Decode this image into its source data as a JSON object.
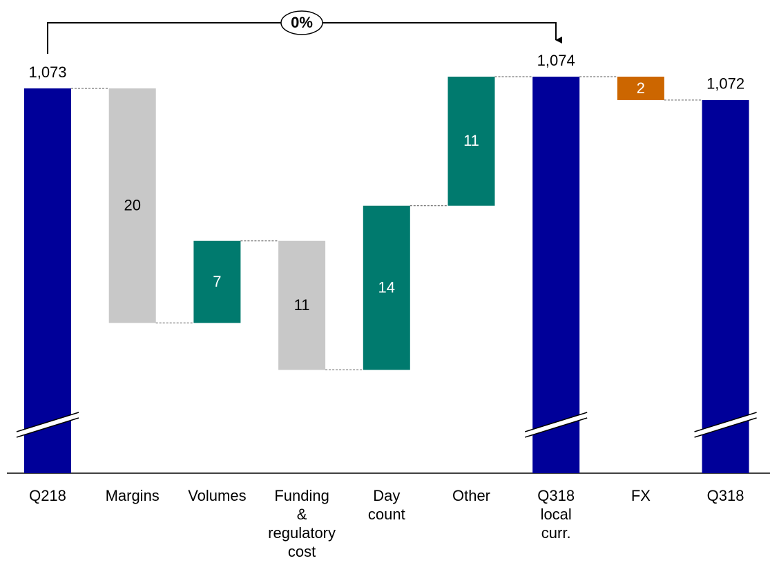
{
  "chart_data": {
    "type": "waterfall",
    "annotation": "0%",
    "categories": [
      "Q218",
      "Margins",
      "Volumes",
      "Funding\n&\nregulatory\ncost",
      "Day\ncount",
      "Other",
      "Q318\nlocal\ncurr.",
      "FX",
      "Q318"
    ],
    "measure": [
      "absolute",
      "relative",
      "relative",
      "relative",
      "relative",
      "relative",
      "absolute",
      "relative",
      "absolute"
    ],
    "values": [
      1073,
      -20,
      7,
      -11,
      14,
      11,
      1074,
      -2,
      1072
    ],
    "value_labels": [
      "1,073",
      "20",
      "7",
      "11",
      "14",
      "11",
      "1,074",
      "2",
      "1,072"
    ],
    "colors": [
      "#000099",
      "#c8c8c8",
      "#007a6e",
      "#c8c8c8",
      "#007a6e",
      "#007a6e",
      "#000099",
      "#cc6600",
      "#000099"
    ],
    "ylim": [
      1040.2,
      1076
    ]
  }
}
